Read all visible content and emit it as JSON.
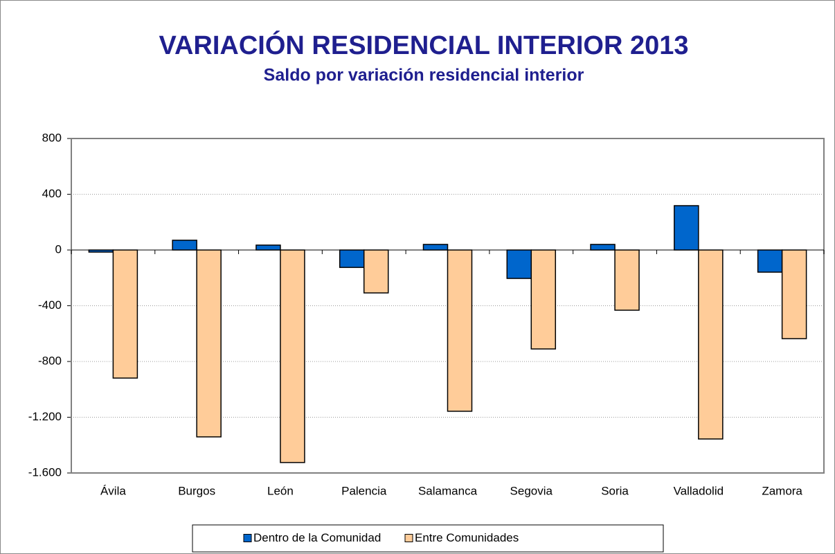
{
  "chart_data": {
    "type": "bar",
    "title": "VARIACIÓN RESIDENCIAL INTERIOR 2013",
    "subtitle": "Saldo por variación residencial interior",
    "categories": [
      "Ávila",
      "Burgos",
      "León",
      "Palencia",
      "Salamanca",
      "Segovia",
      "Soria",
      "Valladolid",
      "Zamora"
    ],
    "series": [
      {
        "name": "Dentro de la Comunidad",
        "color": "#0066cc",
        "values": [
          -15,
          70,
          35,
          -125,
          40,
          -204,
          40,
          318,
          -159
        ]
      },
      {
        "name": "Entre Comunidades",
        "color": "#ffcc99",
        "values": [
          -919,
          -1341,
          -1525,
          -308,
          -1157,
          -710,
          -432,
          -1356,
          -636
        ]
      }
    ],
    "ylim": [
      -1600,
      800
    ],
    "yticks": [
      {
        "value": -1600,
        "label": "-1.600"
      },
      {
        "value": -1200,
        "label": "-1.200"
      },
      -800,
      -400,
      0,
      400,
      800
    ],
    "grid": true,
    "legend": "bottom"
  }
}
